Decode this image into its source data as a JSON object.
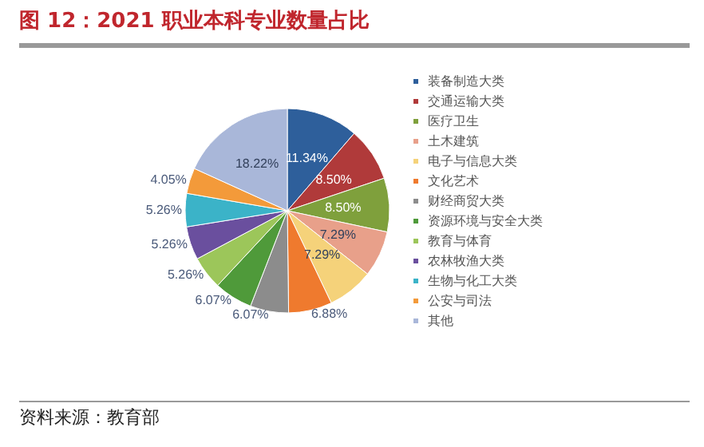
{
  "chart_data": {
    "type": "pie",
    "title": "图 12：2021 职业本科专业数量占比",
    "categories": [
      "装备制造大类",
      "交通运输大类",
      "医疗卫生",
      "土木建筑",
      "电子与信息大类",
      "文化艺术",
      "财经商贸大类",
      "资源环境与安全大类",
      "教育与体育",
      "农林牧渔大类",
      "生物与化工大类",
      "公安与司法",
      "其他"
    ],
    "values": [
      11.34,
      8.5,
      8.5,
      7.29,
      7.29,
      6.88,
      6.07,
      6.07,
      5.26,
      5.26,
      5.26,
      4.05,
      18.22
    ],
    "value_labels": [
      "11.34%",
      "8.50%",
      "8.50%",
      "7.29%",
      "7.29%",
      "6.88%",
      "6.07%",
      "6.07%",
      "5.26%",
      "5.26%",
      "5.26%",
      "4.05%",
      "18.22%"
    ],
    "colors": [
      "#2e5f9b",
      "#b03a3a",
      "#7fa03c",
      "#e8a08a",
      "#f5d27a",
      "#ef7a2e",
      "#8c8c8c",
      "#4f9a3a",
      "#9cc65a",
      "#6a4f9e",
      "#3bb3c8",
      "#f39a3a",
      "#a9b7d9"
    ],
    "legend": "right",
    "annotations": [
      "资料来源：教育部"
    ]
  }
}
